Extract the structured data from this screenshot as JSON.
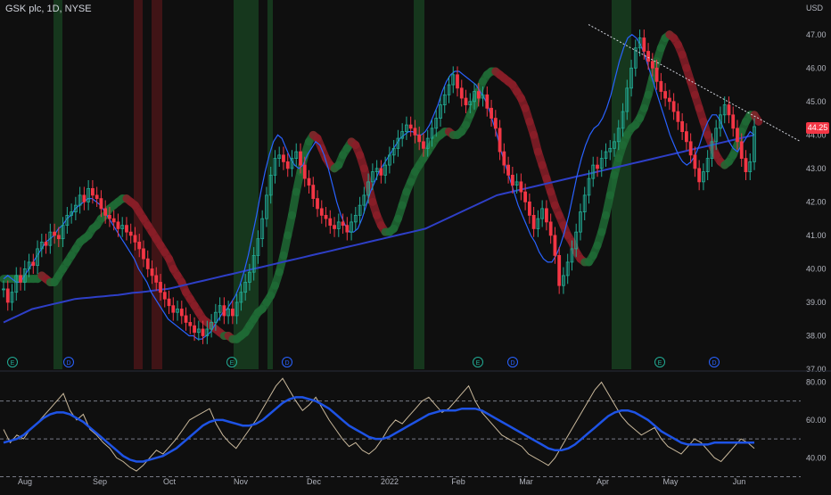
{
  "header": {
    "symbol_label": "GSK plc, 1D, NYSE",
    "currency": "USD"
  },
  "chart_data": [
    {
      "type": "candlestick",
      "title": "GSK plc, 1D, NYSE",
      "ylabel": "USD",
      "ylim": [
        37,
        47.5
      ],
      "y_ticks": [
        "47.00",
        "46.00",
        "45.00",
        "44.00",
        "43.00",
        "42.00",
        "41.00",
        "40.00",
        "39.00",
        "38.00",
        "37.00"
      ],
      "x_ticks": [
        "Aug",
        "Sep",
        "Oct",
        "Nov",
        "Dec",
        "2022",
        "Feb",
        "Mar",
        "Apr",
        "May",
        "Jun"
      ],
      "last_price_label": "44.25",
      "close": [
        39.4,
        39.0,
        39.3,
        39.8,
        39.6,
        40.0,
        40.2,
        40.1,
        40.6,
        40.8,
        40.7,
        41.1,
        41.0,
        40.9,
        41.3,
        41.6,
        41.7,
        41.9,
        42.2,
        42.0,
        42.4,
        42.2,
        42.1,
        41.8,
        41.6,
        41.5,
        41.4,
        41.2,
        41.3,
        41.1,
        41.0,
        40.8,
        40.6,
        40.3,
        40.0,
        39.8,
        39.6,
        39.3,
        39.1,
        38.9,
        38.7,
        38.8,
        38.6,
        38.4,
        38.3,
        38.1,
        38.2,
        38.0,
        38.2,
        38.4,
        38.7,
        38.9,
        38.6,
        38.8,
        38.6,
        39.0,
        39.3,
        39.6,
        39.9,
        40.4,
        40.9,
        41.5,
        42.2,
        42.8,
        43.3,
        43.4,
        43.2,
        43.0,
        43.3,
        43.5,
        43.1,
        42.7,
        42.5,
        42.1,
        41.8,
        41.6,
        41.5,
        41.3,
        41.2,
        41.4,
        41.3,
        41.1,
        41.4,
        41.6,
        41.9,
        42.2,
        42.6,
        42.9,
        43.0,
        42.8,
        43.1,
        43.4,
        43.6,
        43.9,
        44.1,
        44.3,
        44.2,
        44.0,
        43.8,
        43.6,
        43.9,
        44.2,
        44.5,
        44.9,
        45.2,
        45.5,
        45.8,
        45.4,
        45.1,
        44.9,
        45.0,
        45.3,
        45.1,
        45.2,
        44.8,
        44.5,
        44.2,
        43.5,
        43.1,
        42.8,
        42.5,
        42.6,
        42.3,
        42.0,
        41.6,
        41.2,
        41.5,
        41.8,
        41.4,
        41.0,
        40.4,
        39.5,
        39.8,
        40.2,
        40.6,
        41.1,
        41.7,
        42.2,
        42.7,
        43.1,
        43.0,
        43.3,
        43.5,
        43.6,
        43.8,
        44.2,
        44.7,
        45.4,
        46.0,
        46.6,
        46.9,
        46.5,
        46.2,
        46.0,
        45.6,
        45.3,
        45.1,
        45.0,
        44.7,
        44.4,
        44.1,
        43.8,
        43.4,
        43.0,
        42.6,
        42.9,
        43.3,
        43.8,
        44.2,
        44.6,
        44.9,
        44.6,
        44.2,
        43.8,
        43.3,
        42.9,
        43.2,
        44.25
      ],
      "series": [
        {
          "name": "",
          "type": "ma-fast",
          "color": "#2962ff",
          "values": [
            39.7,
            39.8,
            39.7,
            39.6,
            39.6,
            39.8,
            40.0,
            40.2,
            40.4,
            40.6,
            40.8,
            40.9,
            41.0,
            41.2,
            41.3,
            41.5,
            41.6,
            41.8,
            41.9,
            42.0,
            42.1,
            42.1,
            42.0,
            41.9,
            41.7,
            41.5,
            41.3,
            41.1,
            40.9,
            40.7,
            40.5,
            40.3,
            40.0,
            39.8,
            39.6,
            39.3,
            39.1,
            38.9,
            38.7,
            38.5,
            38.4,
            38.3,
            38.2,
            38.1,
            38.0,
            38.0,
            37.9,
            37.9,
            38.0,
            38.1,
            38.3,
            38.5,
            38.7,
            38.8,
            39.0,
            39.2,
            39.5,
            39.9,
            40.4,
            41.0,
            41.6,
            42.3,
            42.9,
            43.4,
            43.8,
            44.0,
            43.9,
            43.6,
            43.3,
            43.1,
            43.0,
            43.1,
            43.4,
            43.6,
            43.8,
            43.7,
            43.4,
            43.0,
            42.5,
            42.0,
            41.6,
            41.3,
            41.1,
            41.1,
            41.2,
            41.5,
            41.9,
            42.3,
            42.6,
            42.9,
            43.1,
            43.3,
            43.5,
            43.7,
            43.9,
            44.0,
            44.1,
            44.1,
            44.0,
            44.0,
            44.1,
            44.3,
            44.6,
            44.9,
            45.3,
            45.6,
            45.8,
            45.9,
            45.9,
            45.8,
            45.7,
            45.6,
            45.5,
            45.3,
            45.1,
            44.8,
            44.4,
            44.0,
            43.5,
            43.1,
            42.7,
            42.3,
            41.9,
            41.6,
            41.3,
            41.0,
            40.8,
            40.5,
            40.3,
            40.2,
            40.2,
            40.4,
            40.7,
            41.1,
            41.6,
            42.2,
            42.8,
            43.3,
            43.7,
            44.0,
            44.2,
            44.3,
            44.5,
            44.8,
            45.2,
            45.7,
            46.2,
            46.6,
            46.9,
            47.0,
            46.9,
            46.7,
            46.4,
            46.0,
            45.6,
            45.2,
            44.8,
            44.4,
            44.0,
            43.7,
            43.4,
            43.2,
            43.1,
            43.2,
            43.4,
            43.7,
            44.1,
            44.4,
            44.6,
            44.6,
            44.4,
            44.1,
            43.8,
            43.6,
            43.5,
            43.7,
            43.9,
            44.1,
            44.0
          ]
        },
        {
          "name": "",
          "type": "ma-slow",
          "color": "#2e3fc7",
          "values": [
            38.4,
            38.5,
            38.6,
            38.7,
            38.8,
            38.85,
            38.9,
            38.95,
            39.0,
            39.05,
            39.1,
            39.12,
            39.14,
            39.16,
            39.18,
            39.2,
            39.22,
            39.25,
            39.28,
            39.3,
            39.32,
            39.35,
            39.38,
            39.4,
            39.45,
            39.5,
            39.55,
            39.6,
            39.65,
            39.7,
            39.75,
            39.8,
            39.85,
            39.9,
            39.95,
            40.0,
            40.05,
            40.1,
            40.15,
            40.2,
            40.25,
            40.3,
            40.35,
            40.4,
            40.45,
            40.5,
            40.55,
            40.6,
            40.65,
            40.7,
            40.75,
            40.8,
            40.85,
            40.9,
            40.95,
            41.0,
            41.05,
            41.1,
            41.15,
            41.2,
            41.3,
            41.4,
            41.5,
            41.6,
            41.7,
            41.8,
            41.9,
            42.0,
            42.1,
            42.2,
            42.25,
            42.3,
            42.35,
            42.4,
            42.45,
            42.5,
            42.55,
            42.6,
            42.65,
            42.7,
            42.75,
            42.8,
            42.85,
            42.9,
            42.95,
            43.0,
            43.05,
            43.1,
            43.15,
            43.2,
            43.25,
            43.3,
            43.35,
            43.4,
            43.45,
            43.5,
            43.55,
            43.6,
            43.65,
            43.7,
            43.75,
            43.8,
            43.85,
            43.9,
            43.95,
            44.0
          ]
        }
      ],
      "resistance_line": {
        "x": [
          0.735,
          1.0
        ],
        "y": [
          47.3,
          43.8
        ]
      }
    },
    {
      "type": "line",
      "ylim": [
        34,
        84
      ],
      "y_ticks": [
        "80.00",
        "60.00",
        "40.00"
      ],
      "levels": [
        70,
        50,
        30
      ],
      "series": [
        {
          "name": "",
          "color": "#c9b89b",
          "values": [
            55,
            48,
            52,
            50,
            55,
            58,
            62,
            66,
            70,
            74,
            65,
            60,
            63,
            55,
            52,
            48,
            45,
            40,
            38,
            35,
            33,
            36,
            40,
            44,
            42,
            46,
            50,
            55,
            60,
            62,
            64,
            66,
            58,
            52,
            48,
            45,
            50,
            55,
            60,
            66,
            72,
            78,
            82,
            76,
            70,
            65,
            68,
            72,
            66,
            60,
            55,
            50,
            46,
            48,
            44,
            42,
            45,
            50,
            56,
            60,
            58,
            62,
            66,
            70,
            72,
            68,
            64,
            66,
            70,
            74,
            78,
            70,
            64,
            60,
            56,
            52,
            50,
            48,
            46,
            42,
            40,
            38,
            36,
            40,
            46,
            52,
            58,
            64,
            70,
            76,
            80,
            74,
            68,
            62,
            58,
            55,
            52,
            54,
            56,
            50,
            46,
            44,
            42,
            46,
            50,
            48,
            44,
            40,
            38,
            42,
            46,
            50,
            48,
            45
          ]
        },
        {
          "name": "",
          "color": "#1e53e5",
          "values": [
            48,
            49,
            50,
            52,
            55,
            58,
            61,
            63,
            64,
            64,
            63,
            61,
            59,
            56,
            53,
            50,
            47,
            44,
            41,
            39,
            38,
            38,
            39,
            40,
            41,
            43,
            45,
            48,
            51,
            54,
            57,
            59,
            60,
            60,
            59,
            58,
            57,
            57,
            58,
            60,
            63,
            66,
            69,
            71,
            72,
            72,
            71,
            70,
            68,
            66,
            63,
            60,
            57,
            55,
            53,
            51,
            50,
            50,
            51,
            53,
            55,
            57,
            59,
            61,
            63,
            64,
            65,
            65,
            65,
            66,
            66,
            66,
            65,
            63,
            61,
            59,
            57,
            55,
            53,
            51,
            49,
            47,
            45,
            44,
            44,
            45,
            47,
            50,
            53,
            56,
            59,
            62,
            64,
            65,
            65,
            64,
            62,
            60,
            57,
            54,
            52,
            50,
            48,
            47,
            47,
            47,
            47,
            48,
            48,
            48,
            48,
            48,
            48,
            48
          ]
        }
      ]
    }
  ]
}
